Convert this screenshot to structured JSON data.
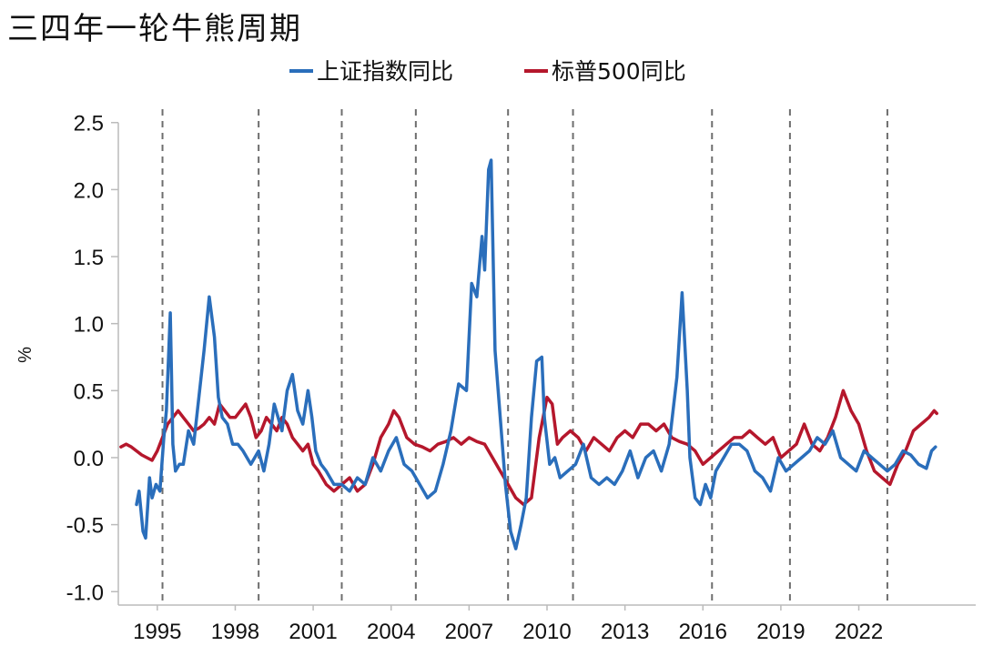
{
  "page": {
    "title": "三四年一轮牛熊周期"
  },
  "chart_data": {
    "type": "line",
    "title": "三四年一轮牛熊周期",
    "ylabel": "%",
    "xlabel": "",
    "xlim": [
      1993.5,
      2026.5
    ],
    "ylim": [
      -1.1,
      2.6
    ],
    "yticks": [
      2.5,
      2.0,
      1.5,
      1.0,
      0.5,
      0.0,
      -0.5,
      -1.0
    ],
    "ytick_labels": [
      "2.5",
      "2.0",
      "1.5",
      "1.0",
      "0.5",
      "0.0",
      "-0.5",
      "-1.0"
    ],
    "xticks": [
      1995,
      1998,
      2001,
      2004,
      2007,
      2010,
      2013,
      2016,
      2019,
      2022
    ],
    "xtick_labels": [
      "1995",
      "1998",
      "2001",
      "2004",
      "2007",
      "2010",
      "2013",
      "2016",
      "2019",
      "2022"
    ],
    "cycle_lines": [
      1995.2,
      1998.9,
      2002.1,
      2004.95,
      2008.5,
      2011.0,
      2016.35,
      2019.35,
      2023.1
    ],
    "legend": {
      "position": "top-center"
    },
    "series": [
      {
        "name": "上证指数同比",
        "color": "#2a6ebb",
        "x": [
          1994.2,
          1994.3,
          1994.45,
          1994.55,
          1994.7,
          1994.8,
          1994.95,
          1995.1,
          1995.25,
          1995.35,
          1995.5,
          1995.55,
          1995.6,
          1995.7,
          1995.85,
          1996.0,
          1996.2,
          1996.4,
          1996.6,
          1996.8,
          1997.0,
          1997.2,
          1997.35,
          1997.5,
          1997.7,
          1997.9,
          1998.1,
          1998.3,
          1998.6,
          1998.9,
          1999.1,
          1999.3,
          1999.5,
          1999.8,
          2000.0,
          2000.2,
          2000.4,
          2000.6,
          2000.8,
          2000.95,
          2001.1,
          2001.3,
          2001.5,
          2001.8,
          2002.1,
          2002.4,
          2002.7,
          2003.0,
          2003.3,
          2003.6,
          2003.9,
          2004.2,
          2004.5,
          2004.8,
          2005.1,
          2005.4,
          2005.7,
          2006.0,
          2006.3,
          2006.6,
          2006.9,
          2007.1,
          2007.3,
          2007.5,
          2007.6,
          2007.75,
          2007.85,
          2008.0,
          2008.2,
          2008.4,
          2008.6,
          2008.8,
          2009.0,
          2009.2,
          2009.4,
          2009.6,
          2009.8,
          2009.9,
          2010.1,
          2010.3,
          2010.5,
          2010.8,
          2011.1,
          2011.4,
          2011.7,
          2012.0,
          2012.3,
          2012.6,
          2012.9,
          2013.2,
          2013.5,
          2013.8,
          2014.1,
          2014.4,
          2014.7,
          2015.0,
          2015.2,
          2015.4,
          2015.5,
          2015.7,
          2015.9,
          2016.1,
          2016.3,
          2016.5,
          2016.8,
          2017.1,
          2017.4,
          2017.7,
          2018.0,
          2018.3,
          2018.6,
          2018.9,
          2019.2,
          2019.5,
          2019.8,
          2020.1,
          2020.4,
          2020.7,
          2021.0,
          2021.3,
          2021.6,
          2021.9,
          2022.2,
          2022.5,
          2022.8,
          2023.1,
          2023.4,
          2023.7,
          2024.0,
          2024.3,
          2024.6,
          2024.8,
          2024.95
        ],
        "y": [
          -0.35,
          -0.25,
          -0.55,
          -0.6,
          -0.15,
          -0.3,
          -0.2,
          -0.25,
          0.15,
          0.35,
          1.08,
          0.6,
          0.1,
          -0.1,
          -0.05,
          -0.05,
          0.2,
          0.1,
          0.45,
          0.8,
          1.2,
          0.9,
          0.45,
          0.3,
          0.25,
          0.1,
          0.1,
          0.05,
          -0.05,
          0.05,
          -0.1,
          0.1,
          0.4,
          0.2,
          0.5,
          0.62,
          0.35,
          0.25,
          0.5,
          0.3,
          0.05,
          -0.05,
          -0.1,
          -0.2,
          -0.2,
          -0.25,
          -0.15,
          -0.2,
          0.0,
          -0.1,
          0.05,
          0.15,
          -0.05,
          -0.1,
          -0.2,
          -0.3,
          -0.25,
          -0.05,
          0.2,
          0.55,
          0.5,
          1.3,
          1.2,
          1.65,
          1.4,
          2.15,
          2.22,
          0.8,
          0.3,
          -0.2,
          -0.55,
          -0.68,
          -0.5,
          -0.3,
          0.3,
          0.72,
          0.75,
          0.3,
          -0.05,
          0.0,
          -0.15,
          -0.1,
          -0.05,
          0.1,
          -0.15,
          -0.2,
          -0.15,
          -0.2,
          -0.1,
          0.05,
          -0.15,
          0.0,
          0.05,
          -0.1,
          0.1,
          0.6,
          1.23,
          0.5,
          0.0,
          -0.3,
          -0.35,
          -0.2,
          -0.3,
          -0.1,
          0.0,
          0.1,
          0.1,
          0.05,
          -0.1,
          -0.15,
          -0.25,
          0.0,
          -0.1,
          -0.05,
          0.0,
          0.05,
          0.15,
          0.1,
          0.2,
          0.0,
          -0.05,
          -0.1,
          0.05,
          0.0,
          -0.05,
          -0.1,
          -0.05,
          0.05,
          0.02,
          -0.05,
          -0.08,
          0.05,
          0.08
        ]
      },
      {
        "name": "标普500同比",
        "color": "#b5172c",
        "x": [
          1993.6,
          1993.8,
          1994.0,
          1994.2,
          1994.4,
          1994.6,
          1994.8,
          1995.0,
          1995.2,
          1995.4,
          1995.6,
          1995.8,
          1996.0,
          1996.2,
          1996.4,
          1996.6,
          1996.8,
          1997.0,
          1997.2,
          1997.4,
          1997.6,
          1997.8,
          1998.0,
          1998.2,
          1998.4,
          1998.6,
          1998.8,
          1999.0,
          1999.2,
          1999.4,
          1999.6,
          1999.8,
          2000.0,
          2000.2,
          2000.4,
          2000.6,
          2000.8,
          2001.0,
          2001.2,
          2001.5,
          2001.8,
          2002.1,
          2002.4,
          2002.7,
          2003.0,
          2003.3,
          2003.6,
          2003.9,
          2004.1,
          2004.3,
          2004.6,
          2004.9,
          2005.2,
          2005.5,
          2005.8,
          2006.1,
          2006.4,
          2006.7,
          2007.0,
          2007.3,
          2007.6,
          2007.9,
          2008.2,
          2008.5,
          2008.8,
          2009.1,
          2009.4,
          2009.7,
          2010.0,
          2010.2,
          2010.4,
          2010.6,
          2010.9,
          2011.2,
          2011.5,
          2011.8,
          2012.1,
          2012.4,
          2012.7,
          2013.0,
          2013.3,
          2013.6,
          2013.9,
          2014.2,
          2014.5,
          2014.8,
          2015.1,
          2015.4,
          2015.7,
          2016.0,
          2016.3,
          2016.6,
          2016.9,
          2017.2,
          2017.5,
          2017.8,
          2018.1,
          2018.4,
          2018.7,
          2019.0,
          2019.3,
          2019.6,
          2019.9,
          2020.2,
          2020.5,
          2020.8,
          2021.1,
          2021.4,
          2021.7,
          2022.0,
          2022.3,
          2022.6,
          2022.9,
          2023.2,
          2023.5,
          2023.8,
          2024.1,
          2024.4,
          2024.7,
          2024.9,
          2025.0
        ],
        "y": [
          0.08,
          0.1,
          0.08,
          0.05,
          0.02,
          0.0,
          -0.02,
          0.05,
          0.15,
          0.25,
          0.3,
          0.35,
          0.3,
          0.25,
          0.2,
          0.22,
          0.25,
          0.3,
          0.25,
          0.4,
          0.35,
          0.3,
          0.3,
          0.35,
          0.4,
          0.3,
          0.15,
          0.2,
          0.3,
          0.25,
          0.2,
          0.3,
          0.25,
          0.15,
          0.1,
          0.05,
          0.1,
          -0.05,
          -0.1,
          -0.2,
          -0.25,
          -0.2,
          -0.15,
          -0.25,
          -0.2,
          -0.05,
          0.15,
          0.25,
          0.35,
          0.3,
          0.15,
          0.1,
          0.08,
          0.05,
          0.1,
          0.12,
          0.15,
          0.1,
          0.15,
          0.12,
          0.1,
          0.0,
          -0.1,
          -0.2,
          -0.3,
          -0.35,
          -0.3,
          0.15,
          0.45,
          0.4,
          0.1,
          0.15,
          0.2,
          0.15,
          0.05,
          0.15,
          0.1,
          0.05,
          0.15,
          0.2,
          0.15,
          0.25,
          0.25,
          0.2,
          0.25,
          0.15,
          0.12,
          0.1,
          0.05,
          -0.05,
          0.0,
          0.05,
          0.1,
          0.15,
          0.15,
          0.2,
          0.15,
          0.1,
          0.15,
          0.0,
          0.05,
          0.1,
          0.25,
          0.1,
          0.05,
          0.15,
          0.3,
          0.5,
          0.35,
          0.25,
          0.05,
          -0.1,
          -0.15,
          -0.2,
          -0.05,
          0.05,
          0.2,
          0.25,
          0.3,
          0.35,
          0.33
        ]
      }
    ]
  }
}
